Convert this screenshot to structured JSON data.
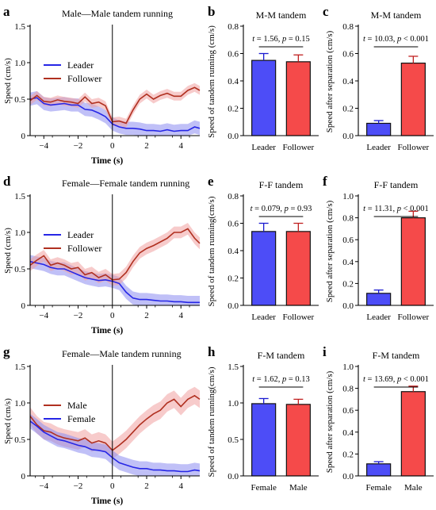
{
  "colors": {
    "leader": "#2626e6",
    "follower": "#b03020",
    "leader_band": "#8c8cf0",
    "follower_band": "#f0a0a0",
    "bar_blue": "#4d4df7",
    "bar_red": "#f54a4a"
  },
  "chart_data": [
    {
      "id": "a",
      "label": "a",
      "type": "line",
      "title": "Male—Male tandem running",
      "xlabel": "Time (s)",
      "ylabel": "Speed (cm/s)",
      "xlim": [
        -4.8,
        5.1
      ],
      "ylim": [
        0,
        1.5
      ],
      "xticks": [
        -4,
        -2,
        0,
        2,
        4
      ],
      "xtick_labels": [
        "−4",
        "−2",
        "0",
        "2",
        "4"
      ],
      "yticks": [
        0,
        0.5,
        1.0,
        1.5
      ],
      "ytick_labels": [
        "0",
        "0.5",
        "1.0",
        "1.5"
      ],
      "legend_position": "upper-left",
      "x": [
        -4.8,
        -4.4,
        -4.0,
        -3.6,
        -3.2,
        -2.8,
        -2.4,
        -2.0,
        -1.6,
        -1.2,
        -0.8,
        -0.4,
        0.0,
        0.4,
        0.8,
        1.2,
        1.6,
        2.0,
        2.4,
        2.8,
        3.2,
        3.6,
        4.0,
        4.4,
        4.8,
        5.1
      ],
      "series": [
        {
          "name": "Leader",
          "color_key": "leader",
          "values": [
            0.5,
            0.52,
            0.44,
            0.42,
            0.43,
            0.44,
            0.42,
            0.42,
            0.36,
            0.35,
            0.31,
            0.26,
            0.16,
            0.12,
            0.1,
            0.1,
            0.09,
            0.07,
            0.07,
            0.06,
            0.08,
            0.06,
            0.07,
            0.07,
            0.12,
            0.1
          ],
          "err": 0.09
        },
        {
          "name": "Follower",
          "color_key": "follower",
          "values": [
            0.48,
            0.55,
            0.47,
            0.46,
            0.49,
            0.47,
            0.46,
            0.44,
            0.53,
            0.44,
            0.46,
            0.41,
            0.19,
            0.2,
            0.17,
            0.35,
            0.5,
            0.57,
            0.5,
            0.55,
            0.58,
            0.54,
            0.54,
            0.62,
            0.66,
            0.62
          ],
          "err": 0.06
        }
      ]
    },
    {
      "id": "b",
      "label": "b",
      "type": "bar",
      "title": "M-M tandem",
      "ylabel": "Speed of  tandem running (cm/s)",
      "categories": [
        "Leader",
        "Follower"
      ],
      "values": [
        0.55,
        0.54
      ],
      "errors": [
        0.05,
        0.05
      ],
      "ylim": [
        0,
        0.8
      ],
      "yticks": [
        0,
        0.2,
        0.4,
        0.6,
        0.8
      ],
      "ytick_labels": [
        "0.0",
        "0.2",
        "0.4",
        "0.6",
        "0.8"
      ],
      "annotation": {
        "t": "1.56",
        "p": "0.15"
      }
    },
    {
      "id": "c",
      "label": "c",
      "type": "bar",
      "title": "M-M tandem",
      "ylabel": "Speed after separation (cm/s)",
      "categories": [
        "Leader",
        "Follower"
      ],
      "values": [
        0.09,
        0.53
      ],
      "errors": [
        0.02,
        0.05
      ],
      "ylim": [
        0,
        0.8
      ],
      "yticks": [
        0,
        0.2,
        0.4,
        0.6,
        0.8
      ],
      "ytick_labels": [
        "0.0",
        "0.2",
        "0.4",
        "0.6",
        "0.8"
      ],
      "annotation": {
        "t": "10.03",
        "p": "< 0.001"
      }
    },
    {
      "id": "d",
      "label": "d",
      "type": "line",
      "title": "Female—Female tandem running",
      "xlabel": "Time (s)",
      "ylabel": "Speed (cm/s)",
      "xlim": [
        -4.8,
        5.1
      ],
      "ylim": [
        0,
        1.5
      ],
      "xticks": [
        -4,
        -2,
        0,
        2,
        4
      ],
      "xtick_labels": [
        "−4",
        "−2",
        "0",
        "2",
        "4"
      ],
      "yticks": [
        0,
        0.5,
        1.0,
        1.5
      ],
      "ytick_labels": [
        "0",
        "0.5",
        "1.0",
        "1.5"
      ],
      "legend_position": "upper-left",
      "x": [
        -4.8,
        -4.4,
        -4.0,
        -3.6,
        -3.2,
        -2.8,
        -2.4,
        -2.0,
        -1.6,
        -1.2,
        -0.8,
        -0.4,
        0.0,
        0.4,
        0.8,
        1.2,
        1.6,
        2.0,
        2.4,
        2.8,
        3.2,
        3.6,
        4.0,
        4.4,
        4.8,
        5.1
      ],
      "series": [
        {
          "name": "Leader",
          "color_key": "leader",
          "values": [
            0.6,
            0.58,
            0.56,
            0.52,
            0.5,
            0.5,
            0.46,
            0.42,
            0.38,
            0.36,
            0.34,
            0.35,
            0.33,
            0.3,
            0.18,
            0.1,
            0.08,
            0.08,
            0.07,
            0.06,
            0.06,
            0.05,
            0.05,
            0.04,
            0.04,
            0.04
          ],
          "err": 0.09
        },
        {
          "name": "Follower",
          "color_key": "follower",
          "values": [
            0.55,
            0.62,
            0.68,
            0.55,
            0.58,
            0.55,
            0.5,
            0.52,
            0.42,
            0.45,
            0.38,
            0.42,
            0.35,
            0.36,
            0.45,
            0.6,
            0.72,
            0.78,
            0.82,
            0.87,
            0.92,
            1.0,
            1.0,
            1.05,
            0.92,
            0.85
          ],
          "err": 0.08
        }
      ]
    },
    {
      "id": "e",
      "label": "e",
      "type": "bar",
      "title": "F-F tandem",
      "ylabel": "Speed of  tandem running(cm/s)",
      "categories": [
        "Leader",
        "Follower"
      ],
      "values": [
        0.54,
        0.54
      ],
      "errors": [
        0.06,
        0.06
      ],
      "ylim": [
        0,
        0.8
      ],
      "yticks": [
        0,
        0.2,
        0.4,
        0.6,
        0.8
      ],
      "ytick_labels": [
        "0.0",
        "0.2",
        "0.4",
        "0.6",
        "0.8"
      ],
      "annotation": {
        "t": "0.079",
        "p": "0.93"
      }
    },
    {
      "id": "f",
      "label": "f",
      "type": "bar",
      "title": "F-F tandem",
      "ylabel": "Speed after separation (cm/s)",
      "categories": [
        "Leader",
        "Follower"
      ],
      "values": [
        0.11,
        0.8
      ],
      "errors": [
        0.03,
        0.06
      ],
      "ylim": [
        0,
        1.0
      ],
      "yticks": [
        0,
        0.2,
        0.4,
        0.6,
        0.8,
        1.0
      ],
      "ytick_labels": [
        "0.0",
        "0.2",
        "0.4",
        "0.6",
        "0.8",
        "1.0"
      ],
      "annotation": {
        "t": "11.31",
        "p": "< 0.001"
      }
    },
    {
      "id": "g",
      "label": "g",
      "type": "line",
      "title": "Female—Male tandem running",
      "xlabel": "Time (s)",
      "ylabel": "Speed (cm/s)",
      "xlim": [
        -4.8,
        5.1
      ],
      "ylim": [
        0,
        1.5
      ],
      "xticks": [
        -4,
        -2,
        0,
        2,
        4
      ],
      "xtick_labels": [
        "−4",
        "−2",
        "0",
        "2",
        "4"
      ],
      "yticks": [
        0,
        0.5,
        1.0,
        1.5
      ],
      "ytick_labels": [
        "0",
        "0.5",
        "1.0",
        "1.5"
      ],
      "legend_position": "upper-left",
      "x": [
        -4.8,
        -4.4,
        -4.0,
        -3.6,
        -3.2,
        -2.8,
        -2.4,
        -2.0,
        -1.6,
        -1.2,
        -0.8,
        -0.4,
        0.0,
        0.4,
        0.8,
        1.2,
        1.6,
        2.0,
        2.4,
        2.8,
        3.2,
        3.6,
        4.0,
        4.4,
        4.8,
        5.1
      ],
      "series": [
        {
          "name": "Male",
          "color_key": "follower",
          "values": [
            0.82,
            0.7,
            0.62,
            0.6,
            0.55,
            0.52,
            0.5,
            0.48,
            0.52,
            0.45,
            0.48,
            0.45,
            0.35,
            0.42,
            0.5,
            0.6,
            0.7,
            0.78,
            0.85,
            0.9,
            1.0,
            1.05,
            0.95,
            1.05,
            1.1,
            1.05
          ],
          "err": 0.12
        },
        {
          "name": "Female",
          "color_key": "leader",
          "values": [
            0.75,
            0.68,
            0.6,
            0.55,
            0.5,
            0.48,
            0.45,
            0.42,
            0.4,
            0.36,
            0.35,
            0.33,
            0.25,
            0.18,
            0.15,
            0.12,
            0.1,
            0.1,
            0.08,
            0.08,
            0.07,
            0.07,
            0.06,
            0.06,
            0.08,
            0.07
          ],
          "err": 0.1
        }
      ]
    },
    {
      "id": "h",
      "label": "h",
      "type": "bar",
      "title": "F-M tandem",
      "ylabel": "Speed of  tandem running(cm/s)",
      "categories": [
        "Female",
        "Male"
      ],
      "values": [
        0.99,
        0.98
      ],
      "errors": [
        0.07,
        0.07
      ],
      "ylim": [
        0,
        1.5
      ],
      "yticks": [
        0,
        0.5,
        1.0,
        1.5
      ],
      "ytick_labels": [
        "0.0",
        "0.5",
        "1.0",
        "1.5"
      ],
      "annotation": {
        "t": "1.62",
        "p": "0.13"
      }
    },
    {
      "id": "i",
      "label": "i",
      "type": "bar",
      "title": "F-M tandem",
      "ylabel": "Speed after separation (cm/s)",
      "categories": [
        "Female",
        "Male"
      ],
      "values": [
        0.11,
        0.77
      ],
      "errors": [
        0.02,
        0.05
      ],
      "ylim": [
        0,
        1.0
      ],
      "yticks": [
        0,
        0.2,
        0.4,
        0.6,
        0.8,
        1.0
      ],
      "ytick_labels": [
        "0.0",
        "0.2",
        "0.4",
        "0.6",
        "0.8",
        "1.0"
      ],
      "annotation": {
        "t": "13.69",
        "p": "< 0.001"
      }
    }
  ]
}
